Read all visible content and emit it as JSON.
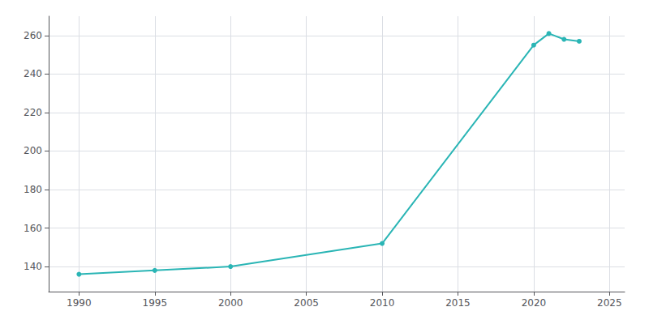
{
  "chart_data": {
    "type": "line",
    "x": [
      1990,
      1995,
      2000,
      2010,
      2020,
      2021,
      2022,
      2023
    ],
    "values": [
      136,
      138,
      140,
      152,
      255,
      261,
      258,
      257
    ],
    "color": "#2ab5b5",
    "marker": "circle",
    "xlim": [
      1988,
      2026
    ],
    "ylim": [
      127,
      270
    ],
    "xticks": [
      1990,
      1995,
      2000,
      2005,
      2010,
      2015,
      2020,
      2025
    ],
    "yticks": [
      140,
      160,
      180,
      200,
      220,
      240,
      260
    ],
    "grid": true
  }
}
